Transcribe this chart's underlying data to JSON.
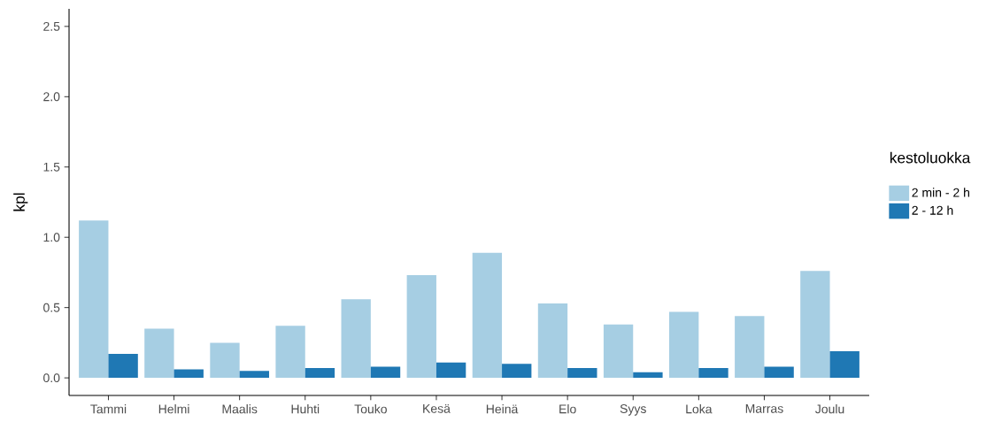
{
  "chart_data": {
    "type": "bar",
    "ylabel": "kpl",
    "legend_title": "kestoluokka",
    "categories": [
      "Tammi",
      "Helmi",
      "Maalis",
      "Huhti",
      "Touko",
      "Kesä",
      "Heinä",
      "Elo",
      "Syys",
      "Loka",
      "Marras",
      "Joulu"
    ],
    "series": [
      {
        "name": "2 min - 2 h",
        "color": "#a6cee3",
        "values": [
          1.12,
          0.35,
          0.25,
          0.37,
          0.56,
          0.73,
          0.89,
          0.53,
          0.38,
          0.47,
          0.44,
          0.76
        ]
      },
      {
        "name": "2 - 12 h",
        "color": "#1f78b4",
        "values": [
          0.17,
          0.06,
          0.05,
          0.07,
          0.08,
          0.11,
          0.1,
          0.07,
          0.04,
          0.07,
          0.08,
          0.19
        ]
      }
    ],
    "ylim": [
      -0.125,
      2.625
    ],
    "yticks": [
      {
        "value": 0,
        "label": "0.0"
      },
      {
        "value": 0.5,
        "label": "0.5"
      },
      {
        "value": 1,
        "label": "1.0"
      },
      {
        "value": 1.5,
        "label": "1.5"
      },
      {
        "value": 2,
        "label": "2.0"
      },
      {
        "value": 2.5,
        "label": "2.5"
      }
    ],
    "grid": false,
    "legend": "right"
  }
}
